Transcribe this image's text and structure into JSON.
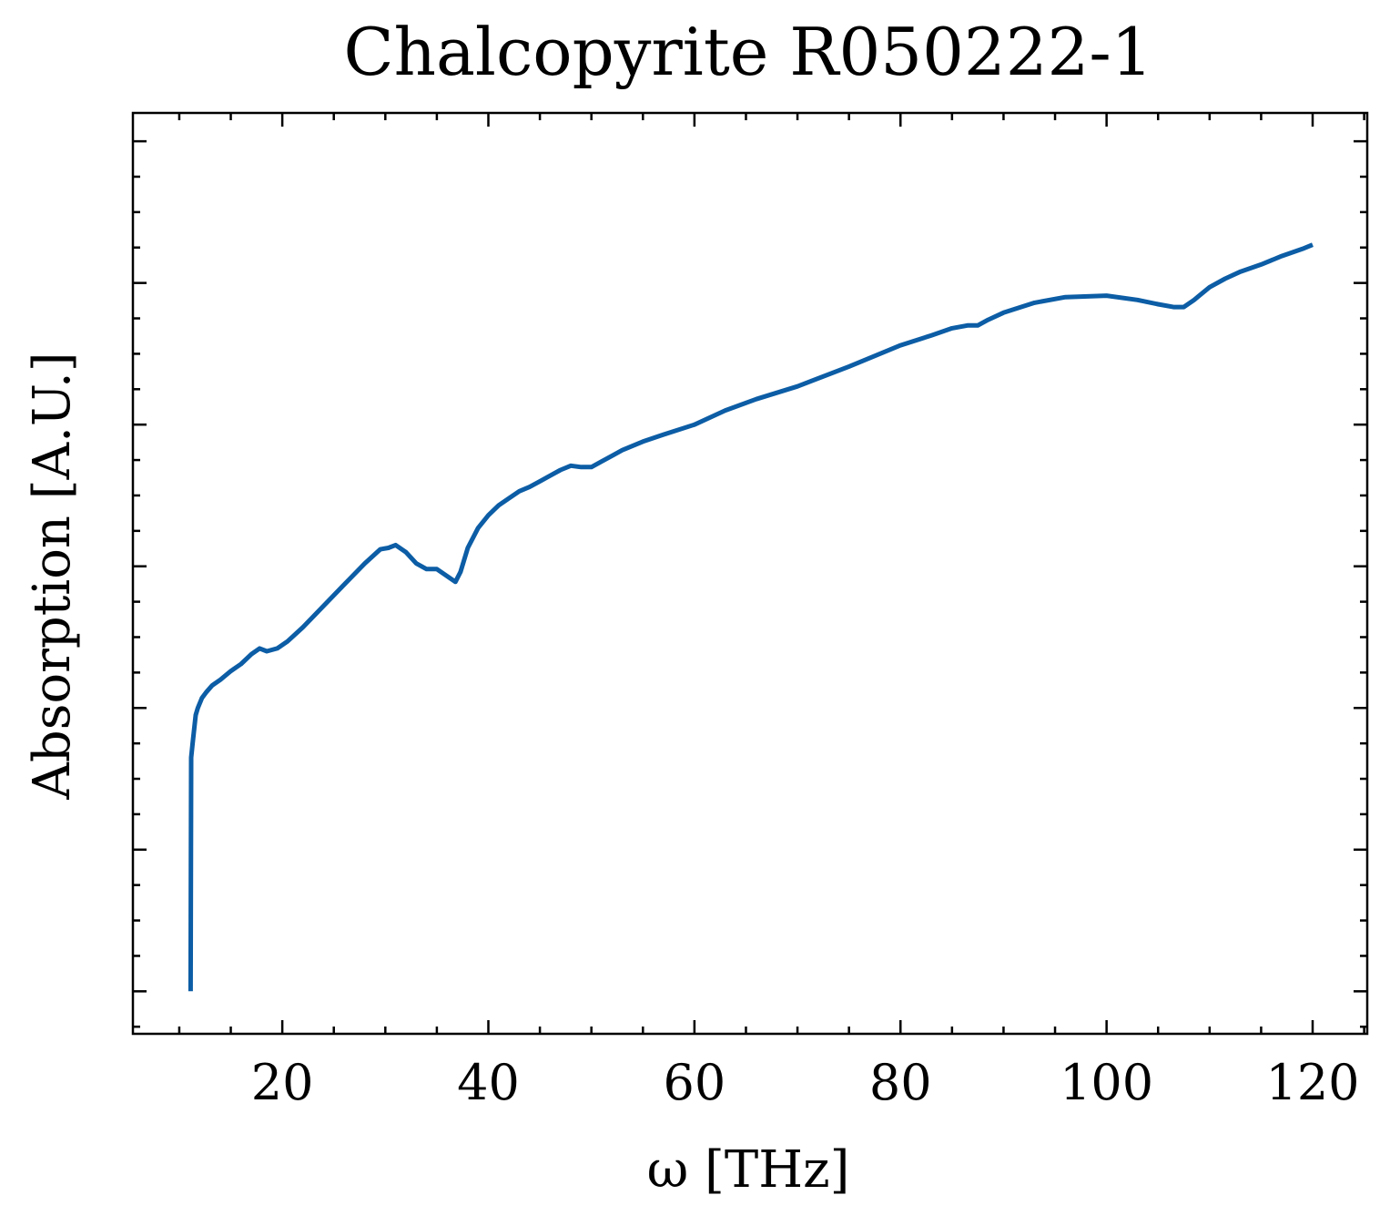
{
  "chart_data": {
    "type": "line",
    "title": "Chalcopyrite R050222-1",
    "xlabel": "ω [THz]",
    "ylabel": "Absorption [A.U.]",
    "xlim": [
      5.5,
      125.3
    ],
    "ylim": [
      -0.03,
      0.62
    ],
    "x_ticks": [
      20,
      40,
      60,
      80,
      100,
      120
    ],
    "x_minor_step": 5,
    "y_ticks": [
      0.0,
      0.1,
      0.2,
      0.3,
      0.4,
      0.5,
      0.6
    ],
    "y_minor_step": 0.025,
    "y_tick_labels_shown": false,
    "grid": false,
    "series": [
      {
        "color": "#0C5DA5",
        "x": [
          11.1,
          11.15,
          11.3,
          11.6,
          11.8,
          12.2,
          12.6,
          13.2,
          14.0,
          15.0,
          16.0,
          17.0,
          17.8,
          18.5,
          19.5,
          20.5,
          22.0,
          24.0,
          26.0,
          28.0,
          29.5,
          30.3,
          31.0,
          32.0,
          33.0,
          34.0,
          35.0,
          36.0,
          36.8,
          37.3,
          38.0,
          39.0,
          40.0,
          41.0,
          42.0,
          43.0,
          44.0,
          45.0,
          46.0,
          47.0,
          48.0,
          49.0,
          50.0,
          51.0,
          52.0,
          53.0,
          55.0,
          57.0,
          60.0,
          63.0,
          66.0,
          70.0,
          75.0,
          80.0,
          83.0,
          85.0,
          86.5,
          87.5,
          88.5,
          90.0,
          93.0,
          96.0,
          100.0,
          103.0,
          105.0,
          106.5,
          107.5,
          108.5,
          109.0,
          110.0,
          111.5,
          113.0,
          115.0,
          117.0,
          119.0,
          120.0
        ],
        "values": [
          0.0,
          0.165,
          0.175,
          0.195,
          0.2,
          0.207,
          0.211,
          0.216,
          0.22,
          0.226,
          0.231,
          0.238,
          0.242,
          0.24,
          0.242,
          0.247,
          0.257,
          0.272,
          0.287,
          0.302,
          0.312,
          0.313,
          0.315,
          0.31,
          0.302,
          0.298,
          0.298,
          0.293,
          0.289,
          0.296,
          0.313,
          0.327,
          0.336,
          0.343,
          0.348,
          0.353,
          0.356,
          0.36,
          0.364,
          0.368,
          0.371,
          0.37,
          0.37,
          0.374,
          0.378,
          0.382,
          0.388,
          0.393,
          0.4,
          0.41,
          0.418,
          0.427,
          0.441,
          0.456,
          0.463,
          0.468,
          0.47,
          0.47,
          0.474,
          0.479,
          0.486,
          0.49,
          0.491,
          0.488,
          0.485,
          0.483,
          0.483,
          0.488,
          0.491,
          0.497,
          0.503,
          0.508,
          0.513,
          0.519,
          0.524,
          0.527
        ]
      }
    ]
  }
}
